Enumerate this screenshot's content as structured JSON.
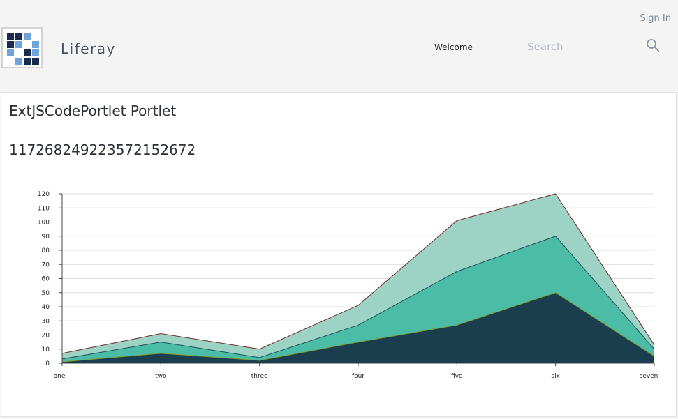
{
  "header": {
    "site_name": "Liferay",
    "sign_in": "Sign In",
    "welcome": "Welcome",
    "search": {
      "placeholder": "Search",
      "value": ""
    },
    "logo_colors": {
      "dark": "#1b2b4f",
      "light": "#6fa3dc"
    }
  },
  "portlet": {
    "title": "ExtJSCodePortlet Portlet",
    "number": "117268249223572152672"
  },
  "chart_data": {
    "type": "area",
    "stacked": true,
    "categories": [
      "one",
      "two",
      "three",
      "four",
      "five",
      "six",
      "seven"
    ],
    "series": [
      {
        "values": [
          1,
          7,
          2,
          15,
          27,
          50,
          5
        ],
        "color": "#1a3e4e",
        "line_color": "#8c9a2b"
      },
      {
        "values": [
          2,
          8,
          2,
          12,
          38,
          40,
          5
        ],
        "color": "#4bbda7",
        "line_color": "#1f4f5a"
      },
      {
        "values": [
          4,
          6,
          6,
          14,
          36,
          30,
          3
        ],
        "color": "#9dd3c4",
        "line_color": "#6b2a2a"
      }
    ],
    "ylim": [
      0,
      120
    ],
    "yticks": [
      0,
      10,
      20,
      30,
      40,
      50,
      60,
      70,
      80,
      90,
      100,
      110,
      120
    ],
    "grid": true,
    "legend": "none"
  }
}
